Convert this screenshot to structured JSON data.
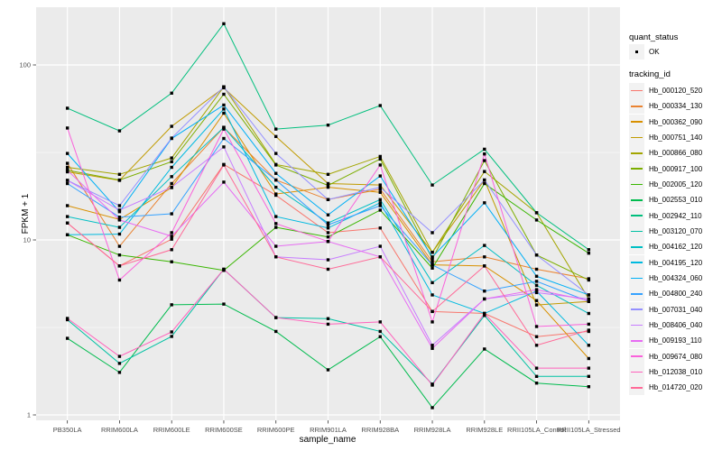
{
  "figure": {
    "panel_bg": "#EBEBEB",
    "grid_color": "#FFFFFF",
    "tick_label_color": "#4D4D4D",
    "y_axis_title": "FPKM + 1",
    "x_axis_title": "sample_name"
  },
  "legend": {
    "quant_status_title": "quant_status",
    "quant_status_items": [
      {
        "label": "OK",
        "marker": "black-point"
      }
    ],
    "tracking_id_title": "tracking_id"
  },
  "chart_data": {
    "type": "line",
    "title": "",
    "xlabel": "sample_name",
    "ylabel": "FPKM + 1",
    "log_y": true,
    "ylim": [
      0.95,
      200
    ],
    "y_ticks": [
      1,
      10,
      100
    ],
    "y_minor_ticks": [
      3.162,
      31.62
    ],
    "grid": true,
    "legend_position": "right",
    "point_marker": "small-black-square",
    "categories": [
      "PB350LA",
      "RRIM600LA",
      "RRIM600LE",
      "RRIM600SE",
      "RRIM600PE",
      "RRIM901LA",
      "RRIM928BA",
      "RRIM928LA",
      "RRIM928LE",
      "RRII105LA_Control",
      "RRII105LA_Stressed"
    ],
    "series": [
      {
        "name": "Hb_000120_520",
        "color": "#F8766D",
        "values": [
          12.5,
          7.1,
          10.1,
          27,
          18,
          11,
          11.7,
          3.9,
          3.8,
          2.8,
          3.0
        ]
      },
      {
        "name": "Hb_000334_130",
        "color": "#EA8331",
        "values": [
          27.4,
          9.2,
          21,
          44,
          22,
          17,
          19.5,
          7.5,
          8.0,
          6.8,
          6.0
        ]
      },
      {
        "name": "Hb_000362_090",
        "color": "#D89000",
        "values": [
          15.7,
          13.1,
          19.9,
          53,
          18.3,
          20,
          18.7,
          7.2,
          7.1,
          4.5,
          2.1
        ]
      },
      {
        "name": "Hb_000751_140",
        "color": "#C09B00",
        "values": [
          24.5,
          21.9,
          44.6,
          74,
          39,
          21,
          20.6,
          8.5,
          22,
          4.25,
          4.45
        ]
      },
      {
        "name": "Hb_000866_080",
        "color": "#A3A500",
        "values": [
          26,
          23.7,
          29.4,
          75,
          27,
          23.7,
          30,
          8.5,
          24.6,
          14.3,
          4.6
        ]
      },
      {
        "name": "Hb_000917_100",
        "color": "#7CAE00",
        "values": [
          25,
          22,
          28,
          68,
          26.8,
          20.5,
          29,
          7.8,
          28.4,
          8.2,
          5.9
        ]
      },
      {
        "name": "Hb_002005_120",
        "color": "#39B600",
        "values": [
          10.7,
          8.2,
          7.5,
          6.7,
          11.8,
          10.4,
          14.8,
          6.9,
          21,
          13,
          8.4
        ]
      },
      {
        "name": "Hb_002553_010",
        "color": "#00BB4E",
        "values": [
          2.74,
          1.75,
          4.26,
          4.3,
          3.0,
          1.81,
          2.8,
          1.1,
          2.38,
          1.52,
          1.45
        ]
      },
      {
        "name": "Hb_002942_110",
        "color": "#00BF7D",
        "values": [
          56.6,
          42,
          69,
          172,
          43,
          45.3,
          58.6,
          20.6,
          33,
          14.3,
          8.8
        ]
      },
      {
        "name": "Hb_003120_070",
        "color": "#00C1A3",
        "values": [
          3.5,
          1.97,
          2.81,
          6.8,
          3.6,
          3.55,
          3.0,
          1.5,
          3.7,
          1.66,
          1.66
        ]
      },
      {
        "name": "Hb_004162_120",
        "color": "#00BFC4",
        "values": [
          13.6,
          11.8,
          23,
          44,
          20,
          12.5,
          17,
          5.7,
          9.3,
          5.5,
          3.8
        ]
      },
      {
        "name": "Hb_004195_120",
        "color": "#00BAE0",
        "values": [
          10.7,
          10.8,
          26,
          56,
          13.6,
          11.7,
          16.3,
          4.85,
          3.8,
          5.1,
          2.5
        ]
      },
      {
        "name": "Hb_004324_060",
        "color": "#00B0F6",
        "values": [
          31.2,
          14.5,
          38,
          59,
          24,
          13.9,
          23.2,
          8.0,
          16.3,
          6.2,
          4.85
        ]
      },
      {
        "name": "Hb_004800_240",
        "color": "#35A2FF",
        "values": [
          21,
          13.5,
          14.1,
          38,
          22,
          12.2,
          15.7,
          7.2,
          5.1,
          5.8,
          4.45
        ]
      },
      {
        "name": "Hb_007031_040",
        "color": "#9590FF",
        "values": [
          21.9,
          15.7,
          38.2,
          75,
          31.2,
          17,
          20,
          11.0,
          22,
          8.2,
          4.85
        ]
      },
      {
        "name": "Hb_008406_040",
        "color": "#C77CFF",
        "values": [
          21.9,
          14.8,
          20,
          34,
          8.0,
          7.7,
          9.2,
          2.5,
          4.6,
          5.0,
          4.6
        ]
      },
      {
        "name": "Hb_009193_110",
        "color": "#E76BF3",
        "values": [
          25,
          13,
          10.5,
          21.4,
          9.2,
          9.8,
          8.0,
          2.4,
          4.6,
          5.2,
          4.5
        ]
      },
      {
        "name": "Hb_009674_080",
        "color": "#FA62DB",
        "values": [
          43.6,
          5.9,
          11.0,
          43,
          12.4,
          9.8,
          26.8,
          3.4,
          31,
          3.2,
          3.3
        ]
      },
      {
        "name": "Hb_012038_010",
        "color": "#FF62BC",
        "values": [
          3.56,
          2.16,
          2.98,
          6.8,
          3.6,
          3.3,
          3.4,
          1.48,
          3.8,
          1.85,
          1.85
        ]
      },
      {
        "name": "Hb_014720_020",
        "color": "#FF6A98",
        "values": [
          12.5,
          7.1,
          8.8,
          26.8,
          8.0,
          6.8,
          8.0,
          3.9,
          7.1,
          2.5,
          3.05
        ]
      }
    ]
  }
}
